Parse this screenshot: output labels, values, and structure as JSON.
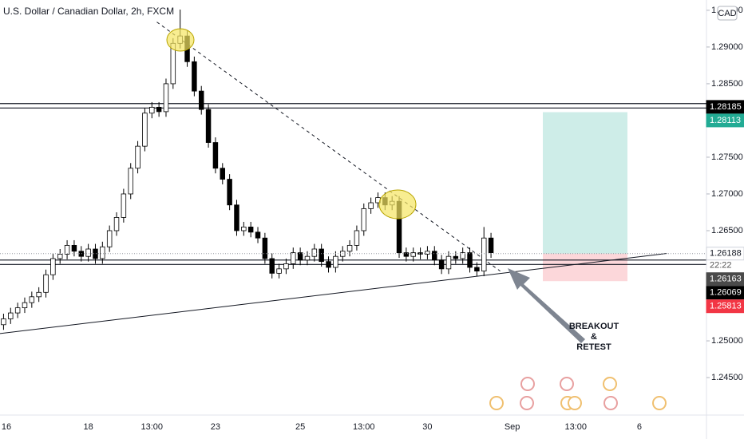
{
  "chart_data": {
    "type": "candlestick",
    "title": "U.S. Dollar / Canadian Dollar, 2h, FXCM",
    "currency": "CAD",
    "categories": [
      "16",
      null,
      null,
      null,
      null,
      null,
      null,
      null,
      null,
      null,
      null,
      null,
      "18",
      null,
      null,
      null,
      null,
      null,
      null,
      null,
      null,
      "13:00",
      null,
      null,
      null,
      null,
      null,
      null,
      null,
      null,
      "23",
      null,
      null,
      null,
      null,
      null,
      null,
      null,
      null,
      null,
      null,
      null,
      "25",
      null,
      null,
      null,
      null,
      null,
      null,
      null,
      null,
      "13:00",
      null,
      null,
      null,
      null,
      null,
      null,
      null,
      null,
      "30",
      null,
      null,
      null,
      null,
      null,
      null,
      null,
      null,
      null,
      null,
      null,
      "Sep",
      null,
      null,
      null,
      null,
      null,
      null,
      null,
      null,
      "13:00",
      null,
      null,
      null,
      null,
      null,
      null,
      null,
      null,
      "6",
      null,
      null,
      null,
      null,
      null,
      null,
      null,
      null,
      null
    ],
    "open": [
      1.2522,
      1.253,
      1.2538,
      1.2545,
      1.2552,
      1.256,
      1.2566,
      1.259,
      1.2612,
      1.2618,
      1.263,
      1.2622,
      1.2615,
      1.2625,
      1.2612,
      1.2628,
      1.265,
      1.2668,
      1.27,
      1.2735,
      1.2765,
      1.281,
      1.2818,
      1.2812,
      1.285,
      1.2905,
      1.2915,
      1.288,
      1.284,
      1.2815,
      1.277,
      1.2735,
      1.272,
      1.2685,
      1.265,
      1.2655,
      1.2648,
      1.264,
      1.2612,
      1.2592,
      1.2598,
      1.2605,
      1.262,
      1.261,
      1.2615,
      1.2625,
      1.2608,
      1.26,
      1.2615,
      1.2622,
      1.263,
      1.265,
      1.268,
      1.2688,
      1.2695,
      1.2685,
      1.269,
      1.262,
      1.2615,
      1.262,
      1.2618,
      1.2622,
      1.261,
      1.2598,
      1.2615,
      1.2612,
      1.262,
      1.26,
      1.2595,
      1.264,
      null,
      null,
      null,
      null,
      null,
      null,
      null,
      null,
      null,
      null,
      null,
      null,
      null,
      null,
      null,
      null,
      null,
      null,
      null,
      null,
      null,
      null,
      null,
      null,
      null,
      null,
      null,
      null,
      null,
      null
    ],
    "high": [
      1.2537,
      1.2545,
      1.2552,
      1.2559,
      1.2567,
      1.2573,
      1.2597,
      1.2619,
      1.2625,
      1.2637,
      1.2637,
      1.2629,
      1.2632,
      1.2632,
      1.2635,
      1.2657,
      1.2675,
      1.2707,
      1.2742,
      1.2772,
      1.2817,
      1.2825,
      1.2825,
      1.2857,
      1.2912,
      1.2951,
      1.2922,
      1.2887,
      1.2847,
      1.2822,
      1.2777,
      1.2742,
      1.2727,
      1.2692,
      1.2662,
      1.2662,
      1.2655,
      1.2647,
      1.2619,
      1.2605,
      1.2612,
      1.2627,
      1.2627,
      1.2622,
      1.2632,
      1.2632,
      1.2615,
      1.2622,
      1.2629,
      1.2637,
      1.2657,
      1.2687,
      1.2695,
      1.2702,
      1.2702,
      1.2697,
      1.2697,
      1.2627,
      1.2627,
      1.2627,
      1.2629,
      1.2629,
      1.2617,
      1.2622,
      1.2622,
      1.2627,
      1.2627,
      1.2607,
      1.2655,
      1.2647,
      null,
      null,
      null,
      null,
      null,
      null,
      null,
      null,
      null,
      null,
      null,
      null,
      null,
      null,
      null,
      null,
      null,
      null,
      null,
      null,
      null,
      null,
      null,
      null,
      null,
      null,
      null,
      null,
      null,
      null
    ],
    "low": [
      1.2515,
      1.2523,
      1.2531,
      1.2538,
      1.2545,
      1.2553,
      1.2559,
      1.2583,
      1.2605,
      1.2611,
      1.2615,
      1.2608,
      1.2608,
      1.2605,
      1.2605,
      1.2621,
      1.2643,
      1.2661,
      1.2693,
      1.2728,
      1.2758,
      1.2803,
      1.2805,
      1.2805,
      1.2843,
      1.2898,
      1.2873,
      1.2833,
      1.2808,
      1.2763,
      1.2728,
      1.2713,
      1.2678,
      1.2643,
      1.2643,
      1.2641,
      1.2633,
      1.2605,
      1.2585,
      1.2585,
      1.2591,
      1.2598,
      1.2603,
      1.2603,
      1.2608,
      1.2601,
      1.2593,
      1.2593,
      1.2608,
      1.2615,
      1.2623,
      1.2643,
      1.2673,
      1.2681,
      1.2678,
      1.2678,
      1.2613,
      1.2608,
      1.2608,
      1.2611,
      1.2611,
      1.2603,
      1.2591,
      1.2591,
      1.2605,
      1.2605,
      1.2593,
      1.2588,
      1.2588,
      1.2613,
      null,
      null,
      null,
      null,
      null,
      null,
      null,
      null,
      null,
      null,
      null,
      null,
      null,
      null,
      null,
      null,
      null,
      null,
      null,
      null,
      null,
      null,
      null,
      null,
      null,
      null,
      null,
      null,
      null,
      null
    ],
    "close": [
      1.253,
      1.2538,
      1.2545,
      1.2552,
      1.256,
      1.2566,
      1.259,
      1.2612,
      1.2618,
      1.263,
      1.2622,
      1.2615,
      1.2625,
      1.2612,
      1.2628,
      1.265,
      1.2668,
      1.27,
      1.2735,
      1.2765,
      1.281,
      1.2818,
      1.2812,
      1.285,
      1.2905,
      1.2915,
      1.288,
      1.284,
      1.2815,
      1.277,
      1.2735,
      1.272,
      1.2685,
      1.265,
      1.2655,
      1.2648,
      1.264,
      1.2612,
      1.2592,
      1.2598,
      1.2605,
      1.262,
      1.261,
      1.2615,
      1.2625,
      1.2608,
      1.26,
      1.2615,
      1.2622,
      1.263,
      1.265,
      1.268,
      1.2688,
      1.2695,
      1.2685,
      1.269,
      1.262,
      1.2615,
      1.262,
      1.2618,
      1.2622,
      1.261,
      1.2598,
      1.2615,
      1.2612,
      1.262,
      1.26,
      1.2595,
      1.264,
      1.262,
      null,
      null,
      null,
      null,
      null,
      null,
      null,
      null,
      null,
      null,
      null,
      null,
      null,
      null,
      null,
      null,
      null,
      null,
      null,
      null,
      null,
      null,
      null,
      null,
      null,
      null,
      null,
      null,
      null,
      null
    ],
    "up_color": "#ffffff",
    "down_color": "#000000",
    "ylim": [
      1.2399,
      1.2964
    ],
    "yticks": [
      {
        "value": 1.245,
        "label": "1.24500"
      },
      {
        "value": 1.25,
        "label": "1.25000"
      },
      {
        "value": 1.265,
        "label": "1.26500"
      },
      {
        "value": 1.27,
        "label": "1.27000"
      },
      {
        "value": 1.275,
        "label": "1.27500"
      },
      {
        "value": 1.28,
        "label": "1.28000"
      },
      {
        "value": 1.285,
        "label": "1.28500"
      },
      {
        "value": 1.29,
        "label": "1.29000"
      },
      {
        "value": 1.295,
        "label": "1.29500"
      }
    ],
    "horizontal_lines": [
      1.2823,
      1.2817,
      1.261,
      1.2604
    ],
    "trendlines": [
      {
        "x": [
          21.7,
          70.3
        ],
        "y": [
          1.2934,
          1.2595
        ],
        "style": "dashed"
      },
      {
        "x": [
          -0.5,
          93.9
        ],
        "y": [
          1.251,
          1.2619
        ],
        "style": "solid"
      }
    ],
    "position": {
      "entry": 1.26188,
      "target": 1.28113,
      "stop": 1.25813
    },
    "price_labels": [
      {
        "value": 1.28185,
        "label": "1.28185",
        "color": "#000000"
      },
      {
        "value": 1.28113,
        "label": "1.28113",
        "color": "#22ab94"
      },
      {
        "value": 1.26188,
        "label": "1.26188",
        "color": "#ffffff"
      },
      {
        "value": 1.26163,
        "label": "1.26163",
        "color": "#4a4a4a"
      },
      {
        "value": 1.26069,
        "label": "1.26069",
        "color": "#000000"
      },
      {
        "value": 1.25813,
        "label": "1.25813",
        "color": "#f23645"
      }
    ],
    "countdown": "22:22",
    "annotation": [
      "BREAKOUT",
      "&",
      "RETEST"
    ]
  }
}
